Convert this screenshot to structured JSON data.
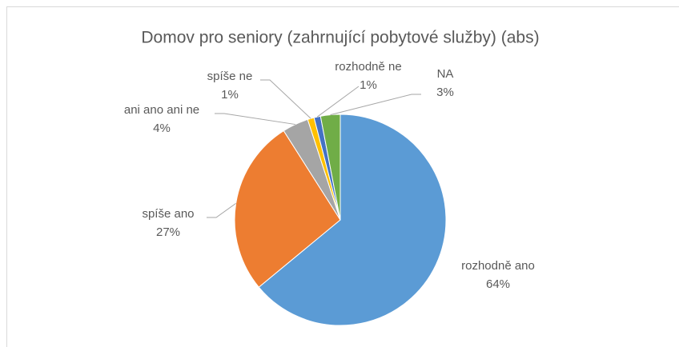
{
  "chart_data": {
    "type": "pie",
    "title": "Domov pro seniory (zahrnující pobytové služby) (abs)",
    "categories": [
      "rozhodně ano",
      "spíše ano",
      "ani ano ani ne",
      "spíše ne",
      "rozhodně ne",
      "NA"
    ],
    "values": [
      64,
      27,
      4,
      1,
      1,
      3
    ],
    "value_labels": [
      "64%",
      "27%",
      "4%",
      "1%",
      "1%",
      "3%"
    ],
    "colors": [
      "#5b9bd5",
      "#ed7d31",
      "#a5a5a5",
      "#ffc000",
      "#4472c4",
      "#70ad47"
    ]
  }
}
